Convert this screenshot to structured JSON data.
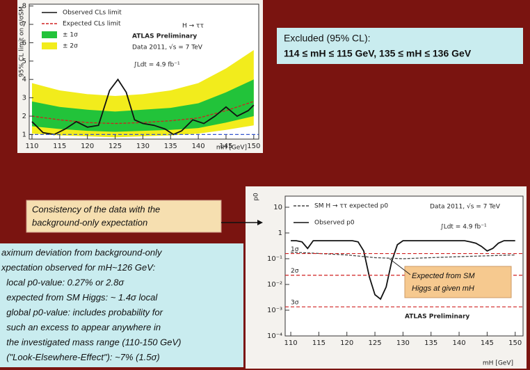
{
  "chart_data": [
    {
      "type": "line",
      "ylabel": "95% CL limit on σ/σSM",
      "xlabel": "mH [GeV]",
      "xlim": [
        109.5,
        150.9
      ],
      "xticks": [
        110,
        115,
        120,
        125,
        130,
        135,
        140,
        145,
        150
      ],
      "ylim": [
        0.75,
        8.1
      ],
      "yticks": [
        1,
        2,
        3,
        4,
        5,
        6,
        7,
        8
      ],
      "log": false,
      "ref_lines": [
        1
      ],
      "ref_color": "#3355cc",
      "annotations": [
        "H → ττ",
        "ATLAS Preliminary",
        "Data 2011, √s = 7 TeV",
        "∫Ldt = 4.9 fb⁻¹"
      ],
      "series": [
        {
          "name": "± 2σ",
          "color": "#f2ec1c",
          "x": [
            110,
            115,
            120,
            125,
            130,
            135,
            140,
            145,
            150
          ],
          "lower": [
            1.05,
            0.95,
            0.9,
            0.85,
            0.9,
            0.95,
            1.05,
            1.25,
            1.5
          ],
          "upper": [
            3.8,
            3.4,
            3.2,
            3.1,
            3.2,
            3.4,
            3.8,
            4.6,
            5.6
          ]
        },
        {
          "name": "± 1σ",
          "color": "#22c33a",
          "x": [
            110,
            115,
            120,
            125,
            130,
            135,
            140,
            145,
            150
          ],
          "lower": [
            1.45,
            1.3,
            1.2,
            1.15,
            1.2,
            1.25,
            1.35,
            1.65,
            2.0
          ],
          "upper": [
            2.8,
            2.5,
            2.35,
            2.25,
            2.35,
            2.45,
            2.7,
            3.3,
            4.0
          ]
        },
        {
          "name": "Expected CLs limit",
          "color": "#d02020",
          "dash": true,
          "x": [
            110,
            115,
            120,
            125,
            130,
            135,
            140,
            145,
            150
          ],
          "values": [
            2.0,
            1.8,
            1.65,
            1.6,
            1.65,
            1.75,
            1.9,
            2.3,
            2.8
          ]
        },
        {
          "name": "Observed CLs limit",
          "color": "#111111",
          "x": [
            110,
            112,
            114,
            116,
            118,
            120,
            122,
            124,
            125.5,
            127,
            128.5,
            130,
            132,
            134,
            135.5,
            137,
            139,
            141,
            143,
            145,
            147,
            149,
            150
          ],
          "values": [
            1.7,
            1.1,
            1.0,
            1.3,
            1.7,
            1.4,
            1.5,
            3.4,
            4.0,
            3.3,
            1.8,
            1.6,
            1.5,
            1.3,
            1.0,
            1.2,
            1.8,
            1.6,
            2.0,
            2.5,
            2.0,
            2.3,
            2.6
          ]
        }
      ]
    },
    {
      "type": "line",
      "ylabel": "p0",
      "xlabel": "mH [GeV]",
      "xlim": [
        109,
        151.4
      ],
      "xticks": [
        110,
        115,
        120,
        125,
        130,
        135,
        140,
        145,
        150
      ],
      "ylim": [
        0.0001,
        27
      ],
      "log": true,
      "yticks": [
        {
          "value": 10,
          "label": "10"
        },
        {
          "value": 1,
          "label": "1"
        },
        {
          "value": 0.1,
          "label": "10⁻¹"
        },
        {
          "value": 0.01,
          "label": "10⁻²"
        },
        {
          "value": 0.001,
          "label": "10⁻³"
        },
        {
          "value": 0.0001,
          "label": "10⁻⁴"
        }
      ],
      "ref_lines": [
        {
          "value": 0.1587,
          "label": "1σ"
        },
        {
          "value": 0.0228,
          "label": "2σ"
        },
        {
          "value": 0.00135,
          "label": "3σ"
        }
      ],
      "ref_color": "#d02020",
      "annotations": [
        "Data 2011, √s = 7 TeV",
        "∫Ldt = 4.9 fb⁻¹",
        "ATLAS Preliminary"
      ],
      "series": [
        {
          "name": "Observed p0",
          "color": "#111111",
          "x": [
            110,
            111,
            112,
            113,
            114,
            116,
            118,
            120,
            121,
            122,
            123,
            124,
            125,
            126,
            127,
            128,
            129,
            130,
            132,
            135,
            138,
            140,
            141,
            142,
            143,
            144,
            145,
            146,
            147,
            148,
            150
          ],
          "values": [
            0.5,
            0.5,
            0.45,
            0.25,
            0.5,
            0.5,
            0.5,
            0.5,
            0.5,
            0.45,
            0.2,
            0.02,
            0.004,
            0.0027,
            0.008,
            0.08,
            0.35,
            0.5,
            0.5,
            0.5,
            0.5,
            0.5,
            0.5,
            0.45,
            0.4,
            0.3,
            0.2,
            0.25,
            0.4,
            0.5,
            0.5
          ]
        },
        {
          "name": "SM H → ττ expected p0",
          "color": "#444444",
          "dash": true,
          "x": [
            110,
            115,
            120,
            125,
            130,
            135,
            140,
            145,
            150
          ],
          "values": [
            0.18,
            0.16,
            0.14,
            0.11,
            0.1,
            0.11,
            0.12,
            0.13,
            0.14
          ]
        }
      ]
    }
  ],
  "excluded": {
    "title": "Excluded (95% CL):",
    "ranges": "114 ≤ mH ≤ 115 GeV, 135 ≤ mH ≤ 136 GeV"
  },
  "consistency": [
    "Consistency of the data with the",
    "background-only expectation"
  ],
  "callout": [
    "Expected from SM",
    "Higgs at given mH"
  ],
  "summary": [
    "aximum deviation from background-only",
    "xpectation observed for mH~126 GeV:",
    "  local p0-value: 0.27% or 2.8σ",
    "  expected from SM Higgs: ~ 1.4σ local",
    "  global p0-value: includes probability for",
    "  such an excess to appear anywhere in",
    "  the investigated mass range (110-150 GeV)",
    "  (\"Look-Elsewhere-Effect\"): ~7% (1.5σ)"
  ]
}
